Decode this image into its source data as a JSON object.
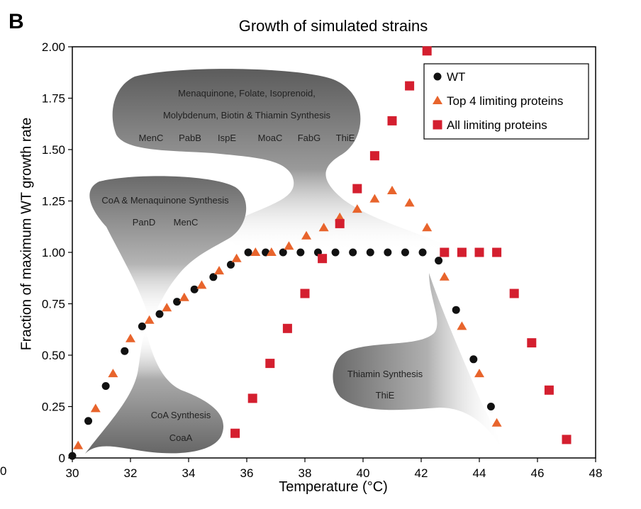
{
  "panel_label": "B",
  "chart_data": {
    "type": "scatter",
    "title": "Growth of simulated strains",
    "xlabel": "Temperature (°C)",
    "ylabel": "Fraction of maximum WT growth rate",
    "xlim": [
      30,
      48
    ],
    "ylim": [
      0,
      2.0
    ],
    "x_ticks": [
      "30",
      "32",
      "34",
      "36",
      "38",
      "40",
      "42",
      "44",
      "46",
      "48"
    ],
    "y_ticks": [
      "0",
      "0.25",
      "0.50",
      "0.75",
      "1.00",
      "1.25",
      "1.50",
      "1.75",
      "2.00"
    ],
    "stray_x_label": "0",
    "legend_position": "top-right",
    "series": [
      {
        "name": "WT",
        "marker": "circle",
        "color": "#111111",
        "points": [
          [
            30.0,
            0.01
          ],
          [
            30.55,
            0.18
          ],
          [
            31.15,
            0.35
          ],
          [
            31.8,
            0.52
          ],
          [
            32.4,
            0.64
          ],
          [
            33.0,
            0.7
          ],
          [
            33.6,
            0.76
          ],
          [
            34.2,
            0.82
          ],
          [
            34.85,
            0.88
          ],
          [
            35.45,
            0.94
          ],
          [
            36.05,
            1.0
          ],
          [
            36.65,
            1.0
          ],
          [
            37.25,
            1.0
          ],
          [
            37.85,
            1.0
          ],
          [
            38.45,
            1.0
          ],
          [
            39.05,
            1.0
          ],
          [
            39.65,
            1.0
          ],
          [
            40.25,
            1.0
          ],
          [
            40.85,
            1.0
          ],
          [
            41.45,
            1.0
          ],
          [
            42.05,
            1.0
          ],
          [
            42.6,
            0.96
          ],
          [
            43.2,
            0.72
          ],
          [
            43.8,
            0.48
          ],
          [
            44.4,
            0.25
          ]
        ]
      },
      {
        "name": "Top 4 limiting proteins",
        "marker": "triangle",
        "color": "#E8642C",
        "points": [
          [
            30.2,
            0.06
          ],
          [
            30.8,
            0.24
          ],
          [
            31.4,
            0.41
          ],
          [
            32.0,
            0.58
          ],
          [
            32.65,
            0.67
          ],
          [
            33.25,
            0.73
          ],
          [
            33.85,
            0.78
          ],
          [
            34.45,
            0.84
          ],
          [
            35.05,
            0.91
          ],
          [
            35.65,
            0.97
          ],
          [
            36.3,
            1.0
          ],
          [
            36.85,
            1.0
          ],
          [
            37.45,
            1.03
          ],
          [
            38.05,
            1.08
          ],
          [
            38.65,
            1.12
          ],
          [
            39.2,
            1.17
          ],
          [
            39.8,
            1.21
          ],
          [
            40.4,
            1.26
          ],
          [
            41.0,
            1.3
          ],
          [
            41.6,
            1.24
          ],
          [
            42.2,
            1.12
          ],
          [
            42.8,
            0.88
          ],
          [
            43.4,
            0.64
          ],
          [
            44.0,
            0.41
          ],
          [
            44.6,
            0.17
          ]
        ]
      },
      {
        "name": "All limiting proteins",
        "marker": "square",
        "color": "#D41F2F",
        "points": [
          [
            35.6,
            0.12
          ],
          [
            36.2,
            0.29
          ],
          [
            36.8,
            0.46
          ],
          [
            37.4,
            0.63
          ],
          [
            38.0,
            0.8
          ],
          [
            38.6,
            0.97
          ],
          [
            39.2,
            1.14
          ],
          [
            39.8,
            1.31
          ],
          [
            40.4,
            1.47
          ],
          [
            41.0,
            1.64
          ],
          [
            41.6,
            1.81
          ],
          [
            42.2,
            1.98
          ],
          [
            42.8,
            1.0
          ],
          [
            43.4,
            1.0
          ],
          [
            44.0,
            1.0
          ],
          [
            44.6,
            1.0
          ],
          [
            45.2,
            0.8
          ],
          [
            45.8,
            0.56
          ],
          [
            46.4,
            0.33
          ],
          [
            47.0,
            0.09
          ]
        ]
      }
    ],
    "annotations": [
      {
        "id": "cloud-menaquinone",
        "lines": [
          "Menaquinone, Folate, Isoprenoid,",
          "Molybdenum, Biotin & Thiamin Synthesis"
        ],
        "genes": [
          "MenC",
          "PabB",
          "IspE",
          "MoaC",
          "FabG",
          "ThiE"
        ]
      },
      {
        "id": "cloud-coa-menaquinone",
        "lines": [
          "CoA & Menaquinone Synthesis"
        ],
        "genes": [
          "PanD",
          "MenC"
        ]
      },
      {
        "id": "cloud-coa",
        "lines": [
          "CoA Synthesis"
        ],
        "genes": [
          "CoaA"
        ]
      },
      {
        "id": "cloud-thiamin",
        "lines": [
          "Thiamin Synthesis"
        ],
        "genes": [
          "ThiE"
        ]
      }
    ]
  }
}
